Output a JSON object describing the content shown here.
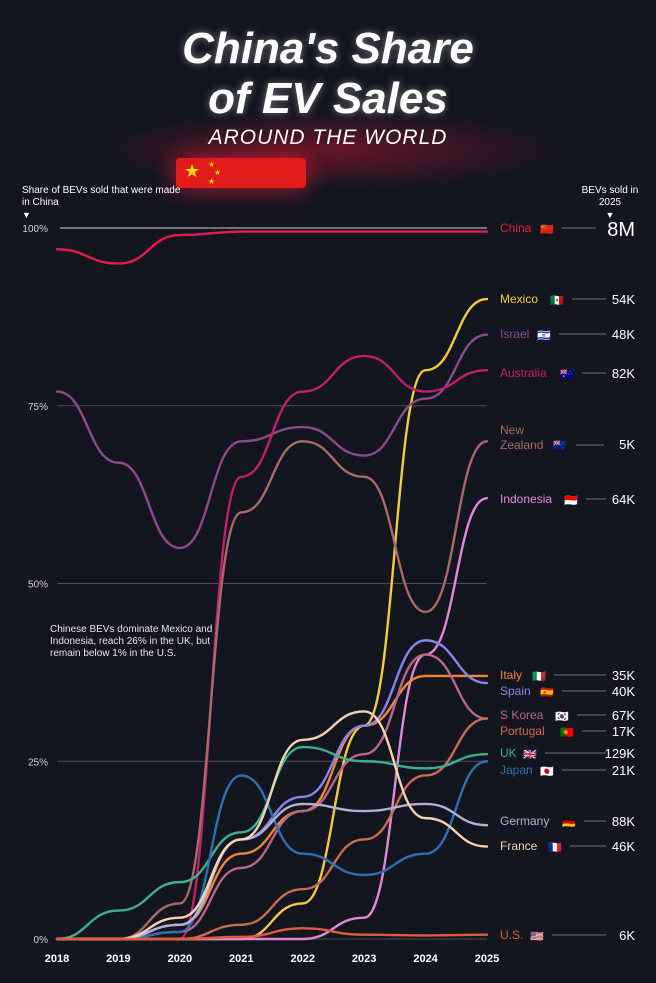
{
  "title_line1": "China's Share",
  "title_line2": "of EV Sales",
  "subtitle": "AROUND THE WORLD",
  "left_axis_note": "Share of BEVs sold that were made in China",
  "right_axis_note": "BEVs sold in 2025",
  "annotation": "Chinese BEVs dominate Mexico and Indonesia, reach 26% in the UK, but remain below 1% in the U.S.",
  "colors": {
    "background": "#14161f",
    "accent_red": "#e31b4b"
  },
  "chart_data": {
    "type": "line",
    "title": "China's Share of EV Sales Around the World",
    "ylabel": "Share of BEVs sold that were made in China",
    "ylim": [
      0,
      100
    ],
    "yticks": [
      "0%",
      "25%",
      "50%",
      "75%",
      "100%"
    ],
    "x": [
      "2018",
      "2019",
      "2020",
      "2021",
      "2022",
      "2023",
      "2024",
      "2025"
    ],
    "series": [
      {
        "name": "China",
        "flag": "🇨🇳",
        "sales_2025": "8M",
        "color": "#e31b4b",
        "values": [
          97,
          95,
          99,
          99.5,
          99.5,
          99.5,
          99.5,
          99.5
        ]
      },
      {
        "name": "Mexico",
        "flag": "🇲🇽",
        "sales_2025": "54K",
        "color": "#f2cc3d",
        "values": [
          0,
          0,
          0,
          0,
          5,
          30,
          80,
          90
        ]
      },
      {
        "name": "Israel",
        "flag": "🇮🇱",
        "sales_2025": "48K",
        "color": "#8a4a8c",
        "values": [
          77,
          67,
          55,
          70,
          72,
          68,
          76,
          85
        ]
      },
      {
        "name": "Australia",
        "flag": "🇦🇺",
        "sales_2025": "82K",
        "color": "#c21f6a",
        "values": [
          0,
          0,
          0,
          65,
          77,
          82,
          77,
          80
        ]
      },
      {
        "name": "New Zealand",
        "flag": "🇳🇿",
        "sales_2025": "5K",
        "color": "#a86a64",
        "values": [
          0,
          0,
          5,
          60,
          70,
          65,
          46,
          70
        ]
      },
      {
        "name": "Indonesia",
        "flag": "🇮🇩",
        "sales_2025": "64K",
        "color": "#e089d9",
        "values": [
          0,
          0,
          0,
          0,
          0,
          3,
          40,
          62
        ]
      },
      {
        "name": "Italy",
        "flag": "🇮🇹",
        "sales_2025": "35K",
        "color": "#f0863a",
        "values": [
          0,
          0,
          2,
          12,
          18,
          30,
          37,
          37
        ]
      },
      {
        "name": "Spain",
        "flag": "🇪🇸",
        "sales_2025": "40K",
        "color": "#8a82e8",
        "values": [
          0,
          0,
          2,
          14,
          20,
          30,
          42,
          36
        ]
      },
      {
        "name": "S Korea",
        "flag": "🇰🇷",
        "sales_2025": "67K",
        "color": "#b5668a",
        "values": [
          0,
          0,
          1,
          10,
          18,
          26,
          40,
          31
        ]
      },
      {
        "name": "Portugal",
        "flag": "🇵🇹",
        "sales_2025": "17K",
        "color": "#c86a55",
        "values": [
          0,
          0,
          0,
          2,
          7,
          14,
          23,
          31
        ]
      },
      {
        "name": "UK",
        "flag": "🇬🇧",
        "sales_2025": "129K",
        "color": "#3fae93",
        "values": [
          0,
          4,
          8,
          15,
          27,
          25,
          24,
          26
        ]
      },
      {
        "name": "Japan",
        "flag": "🇯🇵",
        "sales_2025": "21K",
        "color": "#2f6fb3",
        "values": [
          0,
          0,
          1,
          23,
          12,
          9,
          12,
          25
        ]
      },
      {
        "name": "Germany",
        "flag": "🇩🇪",
        "sales_2025": "88K",
        "color": "#b3b0d8",
        "values": [
          0,
          0,
          2,
          14,
          19,
          18,
          19,
          16
        ]
      },
      {
        "name": "France",
        "flag": "🇫🇷",
        "sales_2025": "46K",
        "color": "#f3d2b5",
        "values": [
          0,
          0,
          3,
          14,
          28,
          32,
          17,
          13
        ]
      },
      {
        "name": "U.S.",
        "flag": "🇺🇸",
        "sales_2025": "6K",
        "color": "#e05a3c",
        "values": [
          0,
          0,
          0,
          0.3,
          1.5,
          0.6,
          0.5,
          0.6
        ]
      }
    ]
  }
}
